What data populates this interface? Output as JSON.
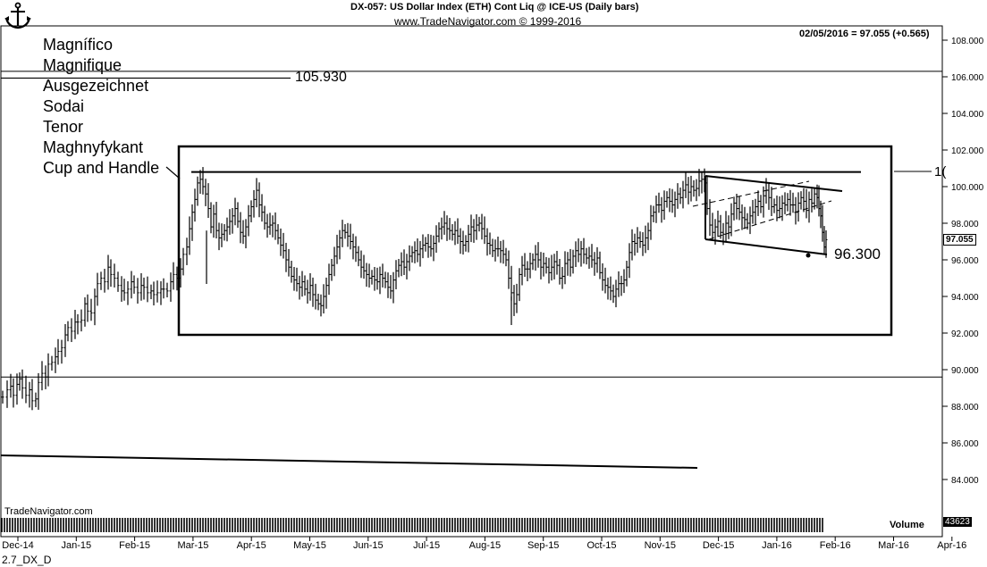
{
  "header": {
    "title": "DX-057:  US Dollar Index (ETH) Cont Liq @ ICE-US  (Daily bars)",
    "copyright": "www.TradeNavigator.com © 1999-2016",
    "last_quote": "02/05/2016 = 97.055 (+0.565)",
    "last_price_label": "97.055"
  },
  "annotations": {
    "words": [
      "Magnífico",
      "Magnifique",
      "Ausgezeichnet",
      "Sodai",
      "Tenor",
      "Maghnyfykant",
      "Cup and Handle"
    ],
    "level_high": "105.930",
    "level_low": "96.300",
    "right_cut_label": "1("
  },
  "footer": {
    "brand": "TradeNavigator.com",
    "volume_label": "Volume",
    "volume_value": "43623",
    "chart_code": "2.7_DX_D"
  },
  "chart_data": {
    "type": "candlestick",
    "y_axis_ticks": [
      "84.000",
      "86.000",
      "88.000",
      "90.000",
      "92.000",
      "94.000",
      "96.000",
      "98.000",
      "100.000",
      "102.000",
      "104.000",
      "106.000",
      "108.000"
    ],
    "x_axis_ticks": [
      "Dec-14",
      "Jan-15",
      "Feb-15",
      "Mar-15",
      "Apr-15",
      "May-15",
      "Jun-15",
      "Jul-15",
      "Aug-15",
      "Sep-15",
      "Oct-15",
      "Nov-15",
      "Dec-15",
      "Jan-16",
      "Feb-16",
      "Mar-16",
      "Apr-16"
    ],
    "ylim": [
      83,
      108.5
    ],
    "close_path": [
      [
        0,
        88.5
      ],
      [
        5,
        88.9
      ],
      [
        9,
        89.1
      ],
      [
        12,
        88.6
      ],
      [
        16,
        89.2
      ],
      [
        19,
        89.5
      ],
      [
        22,
        89.0
      ],
      [
        26,
        88.6
      ],
      [
        30,
        88.9
      ],
      [
        33,
        88.3
      ],
      [
        37,
        88.4
      ],
      [
        40,
        89.3
      ],
      [
        44,
        89.8
      ],
      [
        48,
        89.6
      ],
      [
        51,
        90.3
      ],
      [
        55,
        90.4
      ],
      [
        59,
        90.7
      ],
      [
        62,
        91.0
      ],
      [
        66,
        91.2
      ],
      [
        70,
        91.9
      ],
      [
        73,
        92.3
      ],
      [
        77,
        92.1
      ],
      [
        81,
        92.6
      ],
      [
        84,
        92.6
      ],
      [
        88,
        92.7
      ],
      [
        92,
        93.6
      ],
      [
        95,
        93.2
      ],
      [
        99,
        93.1
      ],
      [
        103,
        94.0
      ],
      [
        106,
        94.7
      ],
      [
        110,
        95.0
      ],
      [
        114,
        94.8
      ],
      [
        118,
        95.6
      ],
      [
        121,
        95.2
      ],
      [
        125,
        95.0
      ],
      [
        129,
        94.6
      ],
      [
        133,
        94.3
      ],
      [
        136,
        94.2
      ],
      [
        140,
        94.4
      ],
      [
        144,
        94.8
      ],
      [
        147,
        94.5
      ],
      [
        151,
        94.2
      ],
      [
        155,
        94.6
      ],
      [
        158,
        94.5
      ],
      [
        162,
        94.2
      ],
      [
        166,
        94.3
      ],
      [
        169,
        94.1
      ],
      [
        173,
        94.2
      ],
      [
        177,
        94.4
      ],
      [
        180,
        94.4
      ],
      [
        184,
        94.3
      ],
      [
        188,
        94.8
      ],
      [
        191,
        95.2
      ],
      [
        195,
        95.0
      ],
      [
        199,
        95.5
      ],
      [
        202,
        96.3
      ],
      [
        206,
        96.7
      ],
      [
        209,
        97.7
      ],
      [
        212,
        98.6
      ],
      [
        215,
        99.3
      ],
      [
        218,
        100.2
      ],
      [
        221,
        100.4
      ],
      [
        224,
        100.0
      ],
      [
        227,
        99.6
      ],
      [
        230,
        98.8
      ],
      [
        233,
        97.8
      ],
      [
        236,
        98.5
      ],
      [
        239,
        97.6
      ],
      [
        242,
        97.2
      ],
      [
        245,
        97.4
      ],
      [
        248,
        97.6
      ],
      [
        251,
        97.8
      ],
      [
        254,
        98.1
      ],
      [
        257,
        98.4
      ],
      [
        260,
        98.8
      ],
      [
        263,
        98.1
      ],
      [
        266,
        97.5
      ],
      [
        269,
        97.3
      ],
      [
        272,
        97.8
      ],
      [
        275,
        98.4
      ],
      [
        278,
        98.9
      ],
      [
        281,
        99.3
      ],
      [
        284,
        99.8
      ],
      [
        287,
        99.0
      ],
      [
        290,
        98.6
      ],
      [
        293,
        98.0
      ],
      [
        296,
        97.8
      ],
      [
        299,
        97.9
      ],
      [
        302,
        98.0
      ],
      [
        305,
        97.6
      ],
      [
        308,
        97.2
      ],
      [
        311,
        96.8
      ],
      [
        314,
        96.5
      ],
      [
        317,
        96.0
      ],
      [
        320,
        95.6
      ],
      [
        323,
        95.1
      ],
      [
        326,
        94.9
      ],
      [
        329,
        94.7
      ],
      [
        332,
        94.5
      ],
      [
        335,
        94.8
      ],
      [
        338,
        94.4
      ],
      [
        341,
        94.2
      ],
      [
        344,
        94.6
      ],
      [
        347,
        94.1
      ],
      [
        350,
        93.8
      ],
      [
        353,
        93.6
      ],
      [
        356,
        93.5
      ],
      [
        359,
        94.0
      ],
      [
        362,
        94.6
      ],
      [
        365,
        95.2
      ],
      [
        368,
        95.7
      ],
      [
        371,
        96.2
      ],
      [
        374,
        96.7
      ],
      [
        377,
        97.2
      ],
      [
        380,
        97.6
      ],
      [
        383,
        97.5
      ],
      [
        386,
        97.3
      ],
      [
        389,
        97.0
      ],
      [
        392,
        96.7
      ],
      [
        395,
        96.4
      ],
      [
        398,
        96.0
      ],
      [
        401,
        95.6
      ],
      [
        404,
        95.4
      ],
      [
        407,
        95.2
      ],
      [
        410,
        95.0
      ],
      [
        413,
        95.1
      ],
      [
        416,
        94.9
      ],
      [
        419,
        94.8
      ],
      [
        422,
        95.2
      ],
      [
        425,
        95.0
      ],
      [
        428,
        94.8
      ],
      [
        431,
        94.5
      ],
      [
        434,
        94.3
      ],
      [
        437,
        94.9
      ],
      [
        440,
        95.4
      ],
      [
        443,
        95.7
      ],
      [
        446,
        95.9
      ],
      [
        449,
        95.6
      ],
      [
        452,
        95.9
      ],
      [
        455,
        96.2
      ],
      [
        458,
        96.4
      ],
      [
        461,
        96.5
      ],
      [
        464,
        96.3
      ],
      [
        467,
        96.6
      ],
      [
        470,
        96.8
      ],
      [
        473,
        96.9
      ],
      [
        476,
        96.7
      ],
      [
        479,
        96.6
      ],
      [
        482,
        96.9
      ],
      [
        485,
        97.3
      ],
      [
        488,
        97.7
      ],
      [
        491,
        97.8
      ],
      [
        494,
        98.0
      ],
      [
        497,
        97.7
      ],
      [
        500,
        97.6
      ],
      [
        503,
        97.4
      ],
      [
        506,
        97.6
      ],
      [
        509,
        97.3
      ],
      [
        512,
        97.0
      ],
      [
        515,
        96.8
      ],
      [
        518,
        97.0
      ],
      [
        521,
        97.4
      ],
      [
        524,
        97.8
      ],
      [
        527,
        97.6
      ],
      [
        530,
        97.9
      ],
      [
        533,
        98.0
      ],
      [
        536,
        97.7
      ],
      [
        539,
        97.3
      ],
      [
        542,
        96.9
      ],
      [
        545,
        96.8
      ],
      [
        548,
        96.5
      ],
      [
        551,
        96.6
      ],
      [
        554,
        96.6
      ],
      [
        557,
        96.5
      ],
      [
        560,
        96.3
      ],
      [
        563,
        96.0
      ],
      [
        566,
        95.0
      ],
      [
        569,
        94.2
      ],
      [
        572,
        93.6
      ],
      [
        575,
        94.1
      ],
      [
        578,
        95.2
      ],
      [
        581,
        95.7
      ],
      [
        584,
        95.5
      ],
      [
        587,
        95.5
      ],
      [
        590,
        95.8
      ],
      [
        593,
        96.0
      ],
      [
        596,
        96.3
      ],
      [
        599,
        96.0
      ],
      [
        602,
        95.6
      ],
      [
        605,
        95.8
      ],
      [
        608,
        95.6
      ],
      [
        611,
        95.3
      ],
      [
        614,
        95.6
      ],
      [
        617,
        95.9
      ],
      [
        620,
        95.7
      ],
      [
        623,
        95.0
      ],
      [
        626,
        95.1
      ],
      [
        629,
        95.8
      ],
      [
        632,
        96.0
      ],
      [
        635,
        95.6
      ],
      [
        638,
        96.2
      ],
      [
        641,
        96.5
      ],
      [
        644,
        96.3
      ],
      [
        647,
        96.6
      ],
      [
        650,
        96.3
      ],
      [
        653,
        96.1
      ],
      [
        656,
        96.2
      ],
      [
        659,
        96.0
      ],
      [
        662,
        95.8
      ],
      [
        665,
        96.1
      ],
      [
        668,
        95.3
      ],
      [
        671,
        94.9
      ],
      [
        674,
        94.6
      ],
      [
        677,
        94.5
      ],
      [
        680,
        94.3
      ],
      [
        683,
        94.0
      ],
      [
        686,
        94.4
      ],
      [
        689,
        94.7
      ],
      [
        692,
        94.7
      ],
      [
        695,
        94.9
      ],
      [
        698,
        95.6
      ],
      [
        701,
        96.4
      ],
      [
        704,
        97.0
      ],
      [
        707,
        96.9
      ],
      [
        710,
        97.2
      ],
      [
        713,
        97.0
      ],
      [
        716,
        96.8
      ],
      [
        719,
        97.2
      ],
      [
        722,
        97.6
      ],
      [
        725,
        98.4
      ],
      [
        728,
        98.6
      ],
      [
        731,
        99.0
      ],
      [
        734,
        99.0
      ],
      [
        737,
        98.7
      ],
      [
        740,
        99.2
      ],
      [
        743,
        99.4
      ],
      [
        746,
        99.2
      ],
      [
        749,
        99.0
      ],
      [
        752,
        99.3
      ],
      [
        755,
        99.6
      ],
      [
        758,
        99.4
      ],
      [
        761,
        99.8
      ],
      [
        764,
        100.1
      ],
      [
        767,
        99.7
      ],
      [
        770,
        100.0
      ],
      [
        773,
        99.8
      ],
      [
        776,
        99.9
      ],
      [
        779,
        100.3
      ],
      [
        782,
        100.4
      ],
      [
        785,
        100.2
      ],
      [
        788,
        98.8
      ],
      [
        791,
        97.9
      ],
      [
        794,
        97.5
      ],
      [
        797,
        97.8
      ],
      [
        800,
        98.1
      ],
      [
        803,
        97.5
      ],
      [
        806,
        97.4
      ],
      [
        809,
        98.0
      ],
      [
        812,
        97.8
      ],
      [
        815,
        98.5
      ],
      [
        818,
        99.1
      ],
      [
        821,
        98.8
      ],
      [
        824,
        98.6
      ],
      [
        827,
        98.3
      ],
      [
        830,
        98.2
      ],
      [
        833,
        98.0
      ],
      [
        836,
        98.4
      ],
      [
        839,
        98.6
      ],
      [
        842,
        98.9
      ],
      [
        845,
        99.2
      ],
      [
        848,
        98.9
      ],
      [
        851,
        99.5
      ],
      [
        854,
        99.8
      ],
      [
        857,
        99.4
      ],
      [
        860,
        98.9
      ],
      [
        863,
        99.0
      ],
      [
        866,
        98.7
      ],
      [
        869,
        98.8
      ],
      [
        872,
        99.1
      ],
      [
        875,
        99.0
      ],
      [
        878,
        99.3
      ],
      [
        881,
        99.0
      ],
      [
        884,
        99.0
      ],
      [
        887,
        98.6
      ],
      [
        890,
        99.1
      ],
      [
        893,
        99.4
      ],
      [
        896,
        99.2
      ],
      [
        899,
        98.7
      ],
      [
        902,
        99.3
      ],
      [
        905,
        99.1
      ],
      [
        908,
        99.6
      ],
      [
        911,
        99.4
      ],
      [
        913,
        98.8
      ],
      [
        915,
        98.4
      ],
      [
        917,
        97.5
      ],
      [
        919,
        96.7
      ],
      [
        921,
        97.1
      ]
    ],
    "overlays": {
      "horizontal_line": 105.93,
      "resistance_line": 100.8,
      "support_line": 96.3,
      "grid_lines": [
        106.3,
        89.6
      ]
    },
    "grid": false,
    "legend": "none"
  }
}
